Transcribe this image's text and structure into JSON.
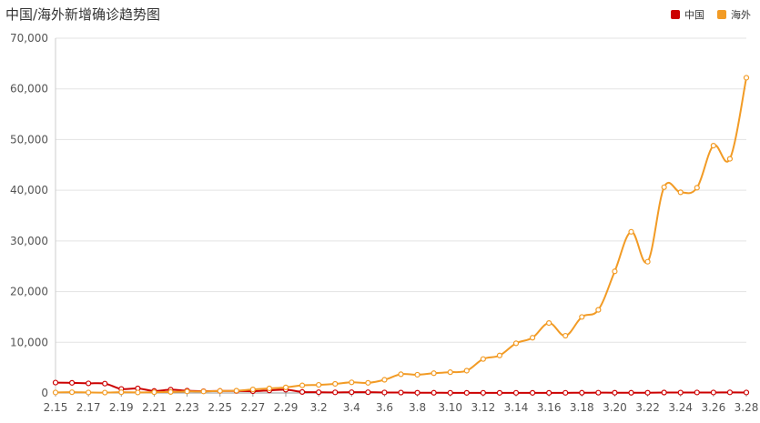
{
  "chart_data": {
    "type": "line",
    "title": "中国/海外新增确诊趋势图",
    "categories": [
      "2.15",
      "2.16",
      "2.17",
      "2.18",
      "2.19",
      "2.20",
      "2.21",
      "2.22",
      "2.23",
      "2.24",
      "2.25",
      "2.26",
      "2.27",
      "2.28",
      "2.29",
      "3.1",
      "3.2",
      "3.3",
      "3.4",
      "3.5",
      "3.6",
      "3.7",
      "3.8",
      "3.9",
      "3.10",
      "3.11",
      "3.12",
      "3.13",
      "3.14",
      "3.15",
      "3.16",
      "3.17",
      "3.18",
      "3.19",
      "3.20",
      "3.21",
      "3.22",
      "3.23",
      "3.24",
      "3.25",
      "3.26",
      "3.27",
      "3.28"
    ],
    "x_tick_labels": [
      "2.15",
      "2.17",
      "2.19",
      "2.21",
      "2.23",
      "2.25",
      "2.27",
      "2.29",
      "3.2",
      "3.4",
      "3.6",
      "3.8",
      "3.10",
      "3.12",
      "3.14",
      "3.16",
      "3.18",
      "3.20",
      "3.22",
      "3.24",
      "3.26",
      "3.28"
    ],
    "ylim": [
      0,
      70000
    ],
    "y_ticks": [
      "0",
      "10,000",
      "20,000",
      "30,000",
      "40,000",
      "50,000",
      "60,000",
      "70,000"
    ],
    "legend": {
      "position": "top-right"
    },
    "grid": true,
    "series": [
      {
        "name": "中国",
        "color": "#cc0000",
        "values": [
          2050,
          2000,
          1900,
          1850,
          800,
          900,
          400,
          650,
          450,
          350,
          400,
          400,
          350,
          500,
          650,
          200,
          150,
          120,
          150,
          150,
          100,
          80,
          50,
          40,
          30,
          25,
          30,
          25,
          30,
          25,
          25,
          30,
          40,
          60,
          50,
          40,
          50,
          90,
          80,
          100,
          100,
          120,
          100
        ]
      },
      {
        "name": "海外",
        "color": "#f29b25",
        "values": [
          100,
          150,
          100,
          80,
          150,
          100,
          150,
          200,
          300,
          300,
          400,
          450,
          700,
          900,
          1100,
          1500,
          1600,
          1800,
          2100,
          2000,
          2600,
          3700,
          3600,
          3900,
          4100,
          4400,
          6700,
          7400,
          9800,
          10900,
          13800,
          11300,
          15000,
          16400,
          24000,
          31800,
          25900,
          40600,
          39600,
          40500,
          48800,
          46200,
          62200
        ]
      }
    ]
  }
}
